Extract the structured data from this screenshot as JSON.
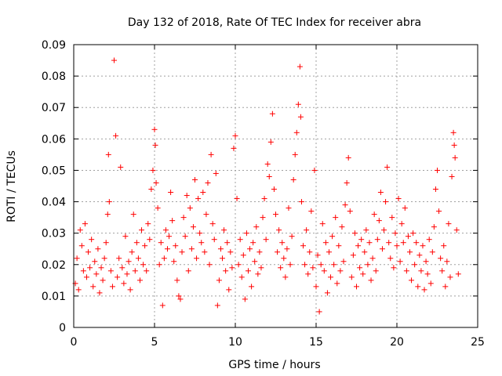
{
  "chart_data": {
    "type": "scatter",
    "title": "Day 132 of 2018, Rate Of TEC Index for receiver abra",
    "xlabel": "GPS time / hours",
    "ylabel": "ROTI / TECUs",
    "xlim": [
      0,
      25
    ],
    "ylim": [
      0,
      0.09
    ],
    "xticks": [
      "0",
      "5",
      "10",
      "15",
      "20",
      "25"
    ],
    "yticks": [
      "0",
      "0.01",
      "0.02",
      "0.03",
      "0.04",
      "0.05",
      "0.06",
      "0.07",
      "0.08",
      "0.09"
    ],
    "grid": true,
    "marker": "+",
    "color": "#ff0000",
    "points": [
      [
        0.1,
        0.014
      ],
      [
        0.2,
        0.022
      ],
      [
        0.3,
        0.012
      ],
      [
        0.4,
        0.031
      ],
      [
        0.5,
        0.026
      ],
      [
        0.6,
        0.018
      ],
      [
        0.7,
        0.033
      ],
      [
        0.8,
        0.016
      ],
      [
        0.9,
        0.024
      ],
      [
        1.0,
        0.019
      ],
      [
        1.1,
        0.028
      ],
      [
        1.2,
        0.013
      ],
      [
        1.3,
        0.021
      ],
      [
        1.4,
        0.017
      ],
      [
        1.5,
        0.025
      ],
      [
        1.6,
        0.011
      ],
      [
        1.7,
        0.019
      ],
      [
        1.8,
        0.015
      ],
      [
        1.9,
        0.022
      ],
      [
        2.0,
        0.027
      ],
      [
        2.1,
        0.036
      ],
      [
        2.15,
        0.055
      ],
      [
        2.2,
        0.04
      ],
      [
        2.3,
        0.018
      ],
      [
        2.4,
        0.013
      ],
      [
        2.5,
        0.085
      ],
      [
        2.6,
        0.061
      ],
      [
        2.7,
        0.016
      ],
      [
        2.8,
        0.022
      ],
      [
        2.9,
        0.051
      ],
      [
        3.0,
        0.019
      ],
      [
        3.1,
        0.014
      ],
      [
        3.2,
        0.029
      ],
      [
        3.3,
        0.017
      ],
      [
        3.4,
        0.021
      ],
      [
        3.5,
        0.012
      ],
      [
        3.6,
        0.024
      ],
      [
        3.7,
        0.036
      ],
      [
        3.8,
        0.018
      ],
      [
        3.9,
        0.027
      ],
      [
        4.0,
        0.022
      ],
      [
        4.1,
        0.015
      ],
      [
        4.2,
        0.031
      ],
      [
        4.3,
        0.02
      ],
      [
        4.4,
        0.026
      ],
      [
        4.5,
        0.018
      ],
      [
        4.6,
        0.033
      ],
      [
        4.7,
        0.028
      ],
      [
        4.8,
        0.044
      ],
      [
        4.9,
        0.05
      ],
      [
        5.0,
        0.063
      ],
      [
        5.05,
        0.058
      ],
      [
        5.1,
        0.046
      ],
      [
        5.2,
        0.038
      ],
      [
        5.3,
        0.02
      ],
      [
        5.4,
        0.027
      ],
      [
        5.5,
        0.007
      ],
      [
        5.6,
        0.022
      ],
      [
        5.7,
        0.031
      ],
      [
        5.8,
        0.025
      ],
      [
        5.9,
        0.029
      ],
      [
        6.0,
        0.043
      ],
      [
        6.1,
        0.034
      ],
      [
        6.2,
        0.021
      ],
      [
        6.3,
        0.026
      ],
      [
        6.4,
        0.015
      ],
      [
        6.5,
        0.01
      ],
      [
        6.6,
        0.009
      ],
      [
        6.7,
        0.024
      ],
      [
        6.8,
        0.035
      ],
      [
        6.9,
        0.029
      ],
      [
        7.0,
        0.042
      ],
      [
        7.1,
        0.018
      ],
      [
        7.2,
        0.038
      ],
      [
        7.3,
        0.025
      ],
      [
        7.4,
        0.032
      ],
      [
        7.5,
        0.047
      ],
      [
        7.6,
        0.022
      ],
      [
        7.7,
        0.041
      ],
      [
        7.8,
        0.03
      ],
      [
        7.9,
        0.027
      ],
      [
        8.0,
        0.043
      ],
      [
        8.1,
        0.024
      ],
      [
        8.2,
        0.036
      ],
      [
        8.3,
        0.046
      ],
      [
        8.4,
        0.02
      ],
      [
        8.5,
        0.055
      ],
      [
        8.6,
        0.033
      ],
      [
        8.7,
        0.028
      ],
      [
        8.8,
        0.049
      ],
      [
        8.9,
        0.007
      ],
      [
        9.0,
        0.015
      ],
      [
        9.1,
        0.025
      ],
      [
        9.2,
        0.022
      ],
      [
        9.3,
        0.031
      ],
      [
        9.4,
        0.018
      ],
      [
        9.5,
        0.027
      ],
      [
        9.6,
        0.012
      ],
      [
        9.7,
        0.024
      ],
      [
        9.8,
        0.019
      ],
      [
        9.9,
        0.057
      ],
      [
        10.0,
        0.061
      ],
      [
        10.1,
        0.041
      ],
      [
        10.2,
        0.02
      ],
      [
        10.3,
        0.028
      ],
      [
        10.4,
        0.016
      ],
      [
        10.5,
        0.023
      ],
      [
        10.6,
        0.009
      ],
      [
        10.7,
        0.03
      ],
      [
        10.8,
        0.018
      ],
      [
        10.9,
        0.025
      ],
      [
        11.0,
        0.013
      ],
      [
        11.1,
        0.027
      ],
      [
        11.2,
        0.021
      ],
      [
        11.3,
        0.032
      ],
      [
        11.4,
        0.017
      ],
      [
        11.5,
        0.024
      ],
      [
        11.6,
        0.019
      ],
      [
        11.7,
        0.035
      ],
      [
        11.8,
        0.041
      ],
      [
        11.9,
        0.028
      ],
      [
        12.0,
        0.052
      ],
      [
        12.1,
        0.048
      ],
      [
        12.2,
        0.059
      ],
      [
        12.3,
        0.068
      ],
      [
        12.4,
        0.044
      ],
      [
        12.5,
        0.036
      ],
      [
        12.6,
        0.024
      ],
      [
        12.7,
        0.031
      ],
      [
        12.8,
        0.019
      ],
      [
        12.9,
        0.027
      ],
      [
        13.0,
        0.022
      ],
      [
        13.1,
        0.016
      ],
      [
        13.2,
        0.025
      ],
      [
        13.3,
        0.038
      ],
      [
        13.4,
        0.02
      ],
      [
        13.5,
        0.029
      ],
      [
        13.6,
        0.047
      ],
      [
        13.7,
        0.055
      ],
      [
        13.8,
        0.062
      ],
      [
        13.9,
        0.071
      ],
      [
        14.0,
        0.083
      ],
      [
        14.05,
        0.067
      ],
      [
        14.1,
        0.04
      ],
      [
        14.2,
        0.026
      ],
      [
        14.3,
        0.02
      ],
      [
        14.4,
        0.031
      ],
      [
        14.5,
        0.017
      ],
      [
        14.6,
        0.024
      ],
      [
        14.7,
        0.037
      ],
      [
        14.8,
        0.019
      ],
      [
        14.9,
        0.05
      ],
      [
        15.0,
        0.013
      ],
      [
        15.1,
        0.023
      ],
      [
        15.2,
        0.005
      ],
      [
        15.3,
        0.02
      ],
      [
        15.4,
        0.033
      ],
      [
        15.5,
        0.018
      ],
      [
        15.6,
        0.027
      ],
      [
        15.7,
        0.011
      ],
      [
        15.8,
        0.024
      ],
      [
        15.9,
        0.016
      ],
      [
        16.0,
        0.029
      ],
      [
        16.1,
        0.02
      ],
      [
        16.2,
        0.035
      ],
      [
        16.3,
        0.014
      ],
      [
        16.4,
        0.026
      ],
      [
        16.5,
        0.018
      ],
      [
        16.6,
        0.032
      ],
      [
        16.7,
        0.021
      ],
      [
        16.8,
        0.039
      ],
      [
        16.9,
        0.046
      ],
      [
        17.0,
        0.054
      ],
      [
        17.1,
        0.037
      ],
      [
        17.2,
        0.016
      ],
      [
        17.3,
        0.023
      ],
      [
        17.4,
        0.03
      ],
      [
        17.5,
        0.013
      ],
      [
        17.6,
        0.026
      ],
      [
        17.7,
        0.019
      ],
      [
        17.8,
        0.028
      ],
      [
        17.9,
        0.017
      ],
      [
        18.0,
        0.024
      ],
      [
        18.1,
        0.031
      ],
      [
        18.2,
        0.02
      ],
      [
        18.3,
        0.027
      ],
      [
        18.4,
        0.015
      ],
      [
        18.5,
        0.022
      ],
      [
        18.6,
        0.036
      ],
      [
        18.7,
        0.018
      ],
      [
        18.8,
        0.028
      ],
      [
        18.9,
        0.034
      ],
      [
        19.0,
        0.043
      ],
      [
        19.1,
        0.025
      ],
      [
        19.2,
        0.031
      ],
      [
        19.3,
        0.04
      ],
      [
        19.4,
        0.051
      ],
      [
        19.5,
        0.027
      ],
      [
        19.6,
        0.022
      ],
      [
        19.7,
        0.035
      ],
      [
        19.8,
        0.019
      ],
      [
        19.9,
        0.03
      ],
      [
        20.0,
        0.026
      ],
      [
        20.1,
        0.041
      ],
      [
        20.2,
        0.021
      ],
      [
        20.3,
        0.033
      ],
      [
        20.4,
        0.027
      ],
      [
        20.5,
        0.038
      ],
      [
        20.6,
        0.018
      ],
      [
        20.7,
        0.029
      ],
      [
        20.8,
        0.024
      ],
      [
        20.9,
        0.015
      ],
      [
        21.0,
        0.03
      ],
      [
        21.1,
        0.02
      ],
      [
        21.2,
        0.027
      ],
      [
        21.3,
        0.013
      ],
      [
        21.4,
        0.023
      ],
      [
        21.5,
        0.018
      ],
      [
        21.6,
        0.026
      ],
      [
        21.7,
        0.012
      ],
      [
        21.8,
        0.021
      ],
      [
        21.9,
        0.017
      ],
      [
        22.0,
        0.028
      ],
      [
        22.1,
        0.014
      ],
      [
        22.2,
        0.024
      ],
      [
        22.3,
        0.032
      ],
      [
        22.4,
        0.044
      ],
      [
        22.5,
        0.05
      ],
      [
        22.6,
        0.037
      ],
      [
        22.7,
        0.022
      ],
      [
        22.8,
        0.018
      ],
      [
        22.9,
        0.026
      ],
      [
        23.0,
        0.013
      ],
      [
        23.1,
        0.021
      ],
      [
        23.2,
        0.033
      ],
      [
        23.3,
        0.016
      ],
      [
        23.4,
        0.048
      ],
      [
        23.5,
        0.062
      ],
      [
        23.55,
        0.058
      ],
      [
        23.6,
        0.054
      ],
      [
        23.7,
        0.031
      ],
      [
        23.8,
        0.017
      ]
    ]
  }
}
